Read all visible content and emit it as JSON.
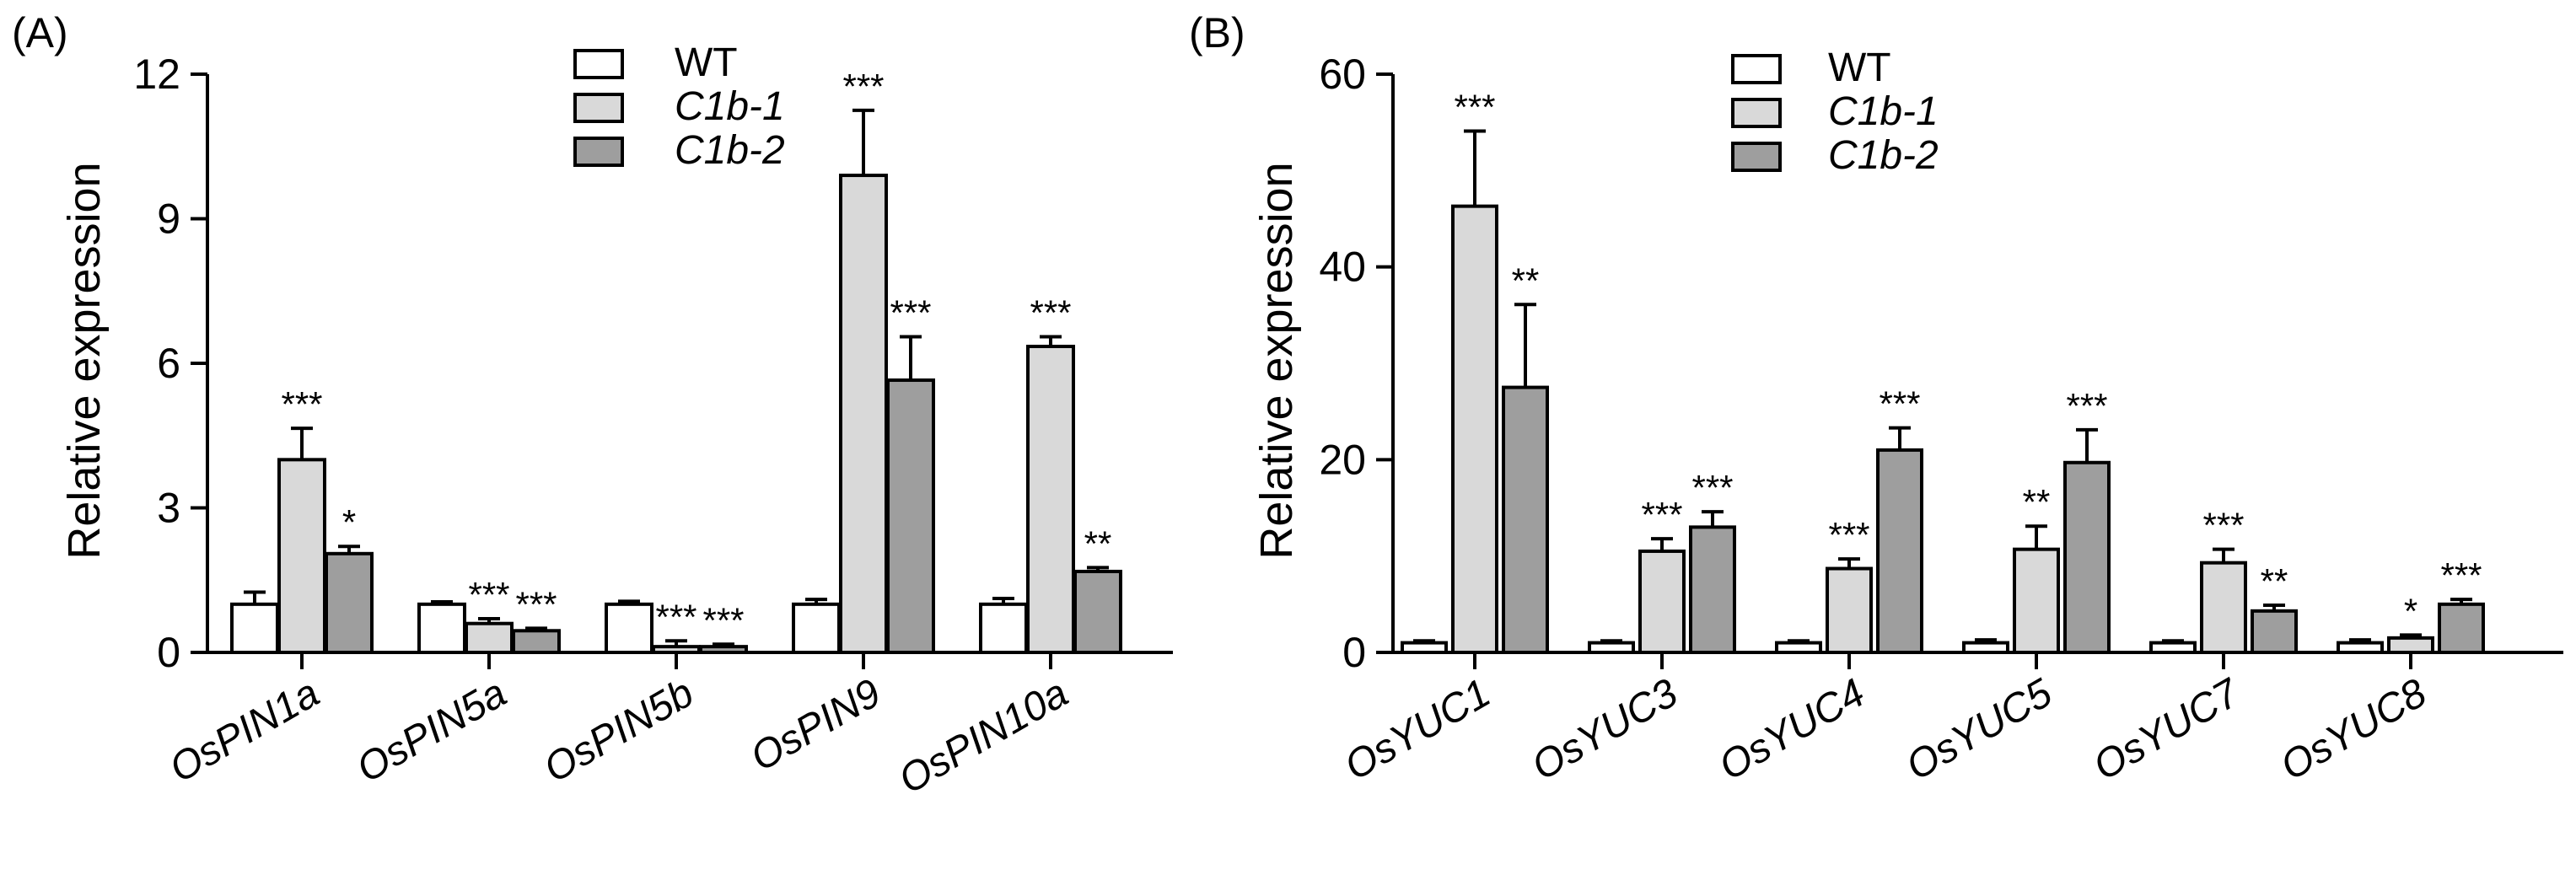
{
  "chart_data": [
    {
      "type": "bar",
      "panel_label": "(A)",
      "title": "",
      "xlabel": "",
      "ylabel": "Relative expression",
      "ylim": [
        0,
        12
      ],
      "yticks": [
        0,
        3,
        6,
        9,
        12
      ],
      "legend_position": "top-center",
      "categories": [
        "OsPIN1a",
        "OsPIN5a",
        "OsPIN5b",
        "OsPIN9",
        "OsPIN10a"
      ],
      "series": [
        {
          "name": "WT",
          "italic": false,
          "color": "#ffffff",
          "values": [
            1.0,
            1.0,
            1.0,
            1.0,
            1.0
          ],
          "errors": [
            0.25,
            0.05,
            0.06,
            0.1,
            0.12
          ],
          "significance": [
            "",
            "",
            "",
            "",
            ""
          ]
        },
        {
          "name": "C1b-1",
          "italic": true,
          "color": "#d9d9d9",
          "values": [
            4.0,
            0.6,
            0.12,
            9.9,
            6.35
          ],
          "errors": [
            0.65,
            0.1,
            0.12,
            1.35,
            0.2
          ],
          "significance": [
            "***",
            "***",
            "***",
            "***",
            "***"
          ]
        },
        {
          "name": "C1b-2",
          "italic": true,
          "color": "#9e9e9e",
          "values": [
            2.05,
            0.45,
            0.12,
            5.65,
            1.68
          ],
          "errors": [
            0.15,
            0.05,
            0.05,
            0.9,
            0.08
          ],
          "significance": [
            "*",
            "***",
            "***",
            "***",
            "**"
          ]
        }
      ]
    },
    {
      "type": "bar",
      "panel_label": "(B)",
      "title": "",
      "xlabel": "",
      "ylabel": "Relative expression",
      "ylim": [
        0,
        60
      ],
      "yticks": [
        0,
        20,
        40,
        60
      ],
      "legend_position": "top-center",
      "categories": [
        "OsYUC1",
        "OsYUC3",
        "OsYUC4",
        "OsYUC5",
        "OsYUC7",
        "OsYUC8"
      ],
      "series": [
        {
          "name": "WT",
          "italic": false,
          "color": "#ffffff",
          "values": [
            1.0,
            1.0,
            1.0,
            1.0,
            1.0,
            1.0
          ],
          "errors": [
            0.2,
            0.2,
            0.2,
            0.3,
            0.2,
            0.3
          ],
          "significance": [
            "",
            "",
            "",
            "",
            "",
            ""
          ]
        },
        {
          "name": "C1b-1",
          "italic": true,
          "color": "#d9d9d9",
          "values": [
            46.3,
            10.5,
            8.7,
            10.7,
            9.3,
            1.5
          ],
          "errors": [
            7.8,
            1.3,
            1.0,
            2.4,
            1.4,
            0.3
          ],
          "significance": [
            "***",
            "***",
            "***",
            "**",
            "***",
            "*"
          ]
        },
        {
          "name": "C1b-2",
          "italic": true,
          "color": "#9e9e9e",
          "values": [
            27.5,
            13.0,
            21.0,
            19.7,
            4.3,
            5.0
          ],
          "errors": [
            8.6,
            1.6,
            2.3,
            3.4,
            0.6,
            0.5
          ],
          "significance": [
            "**",
            "***",
            "***",
            "***",
            "**",
            "***"
          ]
        }
      ]
    }
  ]
}
